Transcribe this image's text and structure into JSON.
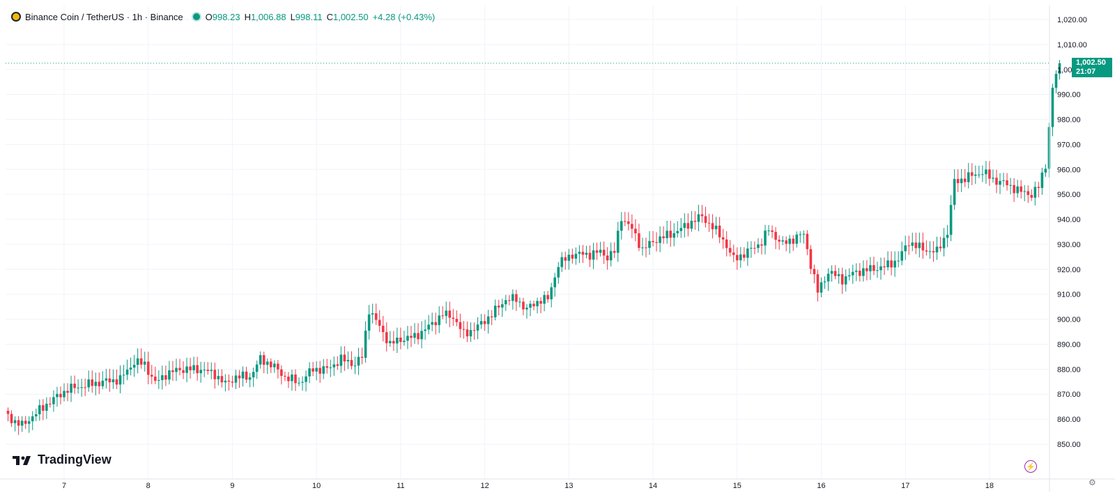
{
  "header": {
    "symbol_title": "Binance Coin / TetherUS · 1h · Binance",
    "o_label": "O",
    "o_value": "998.23",
    "h_label": "H",
    "h_value": "1,006.88",
    "l_label": "L",
    "l_value": "998.11",
    "c_label": "C",
    "c_value": "1,002.50",
    "change": "+4.28 (+0.43%)"
  },
  "brand": {
    "name": "TradingView"
  },
  "price_label": {
    "price": "1,002.50",
    "countdown": "21:07"
  },
  "colors": {
    "up": "#089981",
    "down": "#f23645",
    "grid": "#f0f3fa",
    "axis_text": "#131722",
    "price_line": "#089981"
  },
  "chart_data": {
    "type": "candlestick",
    "title": "Binance Coin / TetherUS · 1h · Binance",
    "xlabel": "",
    "ylabel": "",
    "ylim": [
      845,
      1025
    ],
    "y_ticks": [
      850,
      860,
      870,
      880,
      890,
      900,
      910,
      920,
      930,
      940,
      950,
      960,
      970,
      980,
      990,
      1000,
      1010,
      1020
    ],
    "y_tick_labels": [
      "850.00",
      "860.00",
      "870.00",
      "880.00",
      "890.00",
      "900.00",
      "910.00",
      "920.00",
      "930.00",
      "940.00",
      "950.00",
      "960.00",
      "970.00",
      "980.00",
      "990.00",
      "1,000.00",
      "1,010.00",
      "1,020.00"
    ],
    "x_labels": [
      "7",
      "8",
      "9",
      "10",
      "11",
      "12",
      "13",
      "14",
      "15",
      "16",
      "17",
      "18"
    ],
    "x_label_hours": [
      17,
      41,
      65,
      89,
      113,
      137,
      161,
      185,
      209,
      233,
      257,
      281
    ],
    "hours_shown": 301,
    "last_price": 1002.5,
    "close_path": [
      [
        0,
        862.5
      ],
      [
        3,
        859
      ],
      [
        5,
        857.5
      ],
      [
        12,
        866
      ],
      [
        18,
        872
      ],
      [
        26,
        874.5
      ],
      [
        33,
        876
      ],
      [
        37,
        883
      ],
      [
        40,
        882
      ],
      [
        43,
        874.5
      ],
      [
        46,
        878
      ],
      [
        50,
        880
      ],
      [
        56,
        880
      ],
      [
        60,
        878
      ],
      [
        63,
        874
      ],
      [
        66,
        877
      ],
      [
        70,
        877
      ],
      [
        73,
        884
      ],
      [
        76,
        882
      ],
      [
        80,
        877
      ],
      [
        84,
        874.5
      ],
      [
        88,
        880
      ],
      [
        92,
        880
      ],
      [
        96,
        884
      ],
      [
        100,
        882
      ],
      [
        102,
        885
      ],
      [
        104,
        904
      ],
      [
        107,
        897
      ],
      [
        110,
        890
      ],
      [
        113,
        892
      ],
      [
        117,
        893
      ],
      [
        121,
        897
      ],
      [
        125,
        902
      ],
      [
        128,
        901
      ],
      [
        131,
        894
      ],
      [
        135,
        897
      ],
      [
        139,
        902
      ],
      [
        143,
        908
      ],
      [
        146,
        908
      ],
      [
        149,
        904
      ],
      [
        153,
        908
      ],
      [
        155,
        908
      ],
      [
        158,
        922
      ],
      [
        162,
        926
      ],
      [
        167,
        926
      ],
      [
        170,
        927
      ],
      [
        172,
        925
      ],
      [
        174,
        927
      ],
      [
        176,
        941
      ],
      [
        179,
        936
      ],
      [
        182,
        928
      ],
      [
        186,
        932
      ],
      [
        190,
        934
      ],
      [
        194,
        937
      ],
      [
        197,
        940
      ],
      [
        199,
        941
      ],
      [
        202,
        937
      ],
      [
        205,
        932
      ],
      [
        208,
        924
      ],
      [
        212,
        927
      ],
      [
        216,
        931
      ],
      [
        218,
        936
      ],
      [
        222,
        930
      ],
      [
        226,
        933
      ],
      [
        228,
        934
      ],
      [
        230,
        922
      ],
      [
        232,
        911
      ],
      [
        235,
        919
      ],
      [
        239,
        916
      ],
      [
        243,
        919
      ],
      [
        247,
        920
      ],
      [
        251,
        921
      ],
      [
        255,
        924
      ],
      [
        258,
        931
      ],
      [
        262,
        928
      ],
      [
        266,
        927
      ],
      [
        269,
        935
      ],
      [
        271,
        955
      ],
      [
        275,
        957
      ],
      [
        279,
        959
      ],
      [
        282,
        956
      ],
      [
        286,
        954
      ],
      [
        290,
        951
      ],
      [
        293,
        950
      ],
      [
        295,
        953
      ],
      [
        297,
        962
      ],
      [
        299,
        992
      ],
      [
        301,
        986
      ],
      [
        304,
        995
      ],
      [
        306,
        993
      ],
      [
        308,
        998.23
      ],
      [
        309,
        1002.5
      ]
    ]
  }
}
